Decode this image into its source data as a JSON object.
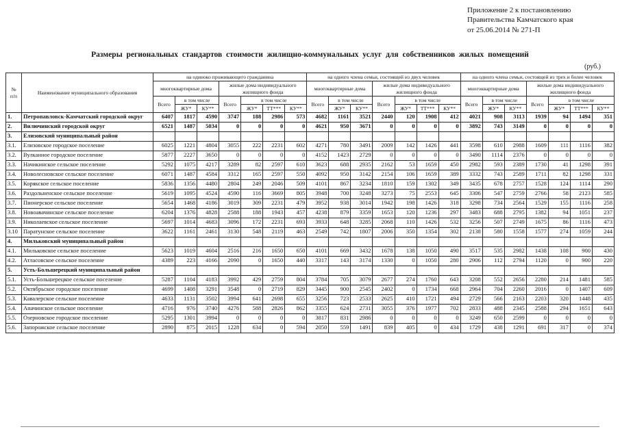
{
  "page": {
    "annotation_lines": [
      "Приложение 2 к постановлению",
      "Правительства Камчатского края",
      "от 25.06.2014   № 271-П"
    ],
    "title": "Размеры региональных стандартов стоимости жилищно-коммунальных услуг для собственников жилых помещений",
    "unit": "(руб.)"
  },
  "table": {
    "headers": {
      "num": "№\nп/п",
      "name": "Наименование муниципального образования",
      "group1": "на одиноко проживающего гражданина",
      "group2": "на одного члена семьи, состоящей из двух человек",
      "group3": "на одного члена семьи, состоящей из трех и более человек",
      "mkd": "многоквартирные дома",
      "ind": "жилые дома индивидуального жилищного фонда",
      "total": "Всего",
      "including": "в том числе",
      "zhu": "ЖУ*",
      "ku": "КУ**",
      "tt": "ТТ***"
    },
    "rows": [
      {
        "num": "1.",
        "name": "Петропавловск-Камчатский городской округ",
        "bold": true,
        "values": [
          6407,
          1817,
          4590,
          3747,
          188,
          2986,
          573,
          4682,
          1161,
          3521,
          2440,
          120,
          1908,
          412,
          4021,
          908,
          3113,
          1939,
          94,
          1494,
          351
        ]
      },
      {
        "num": "2.",
        "name": "Вилючинский городской округ",
        "bold": true,
        "values": [
          6521,
          1487,
          5034,
          0,
          0,
          0,
          0,
          4621,
          950,
          3671,
          0,
          0,
          0,
          0,
          3892,
          743,
          3149,
          0,
          0,
          0,
          0
        ]
      },
      {
        "num": "3.",
        "name": "Елизовский муниципальный район",
        "bold": true,
        "values": []
      },
      {
        "num": "3.1.",
        "name": "Елизовское городское поселение",
        "bold": false,
        "values": [
          6025,
          1221,
          4804,
          3055,
          222,
          2231,
          602,
          4271,
          780,
          3491,
          2009,
          142,
          1426,
          441,
          3598,
          610,
          2988,
          1609,
          111,
          1116,
          382
        ]
      },
      {
        "num": "3.2.",
        "name": "Вулканное городское поселение",
        "bold": false,
        "values": [
          5877,
          2227,
          3650,
          0,
          0,
          0,
          0,
          4152,
          1423,
          2729,
          0,
          0,
          0,
          0,
          3490,
          1114,
          2376,
          0,
          0,
          0,
          0
        ]
      },
      {
        "num": "3.3.",
        "name": "Начикинское сельское поселение",
        "bold": false,
        "values": [
          5292,
          1075,
          4217,
          3289,
          82,
          2597,
          610,
          3623,
          688,
          2935,
          2162,
          53,
          1659,
          450,
          2982,
          593,
          2389,
          1730,
          41,
          1298,
          391
        ]
      },
      {
        "num": "3.4.",
        "name": "Новолесновское сельское поселение",
        "bold": false,
        "values": [
          6071,
          1487,
          4584,
          3312,
          165,
          2597,
          550,
          4092,
          950,
          3142,
          2154,
          106,
          1659,
          389,
          3332,
          743,
          2589,
          1711,
          82,
          1298,
          331
        ]
      },
      {
        "num": "3.5.",
        "name": "Корякское сельское поселение",
        "bold": false,
        "values": [
          5836,
          1356,
          4480,
          2804,
          249,
          2046,
          509,
          4101,
          867,
          3234,
          1810,
          159,
          1302,
          349,
          3435,
          678,
          2757,
          1528,
          124,
          1114,
          290
        ]
      },
      {
        "num": "3.6.",
        "name": "Раздольненское сельское поселение",
        "bold": false,
        "values": [
          5619,
          1095,
          4524,
          4590,
          116,
          3669,
          805,
          3948,
          700,
          3248,
          3273,
          75,
          2553,
          645,
          3306,
          547,
          2759,
          2766,
          58,
          2123,
          585
        ]
      },
      {
        "num": "3.7.",
        "name": "Пионерское сельское поселение",
        "bold": false,
        "values": [
          5654,
          1468,
          4186,
          3019,
          309,
          2231,
          479,
          3952,
          938,
          3014,
          1942,
          198,
          1426,
          318,
          3298,
          734,
          2564,
          1529,
          155,
          1116,
          258
        ]
      },
      {
        "num": "3.8.",
        "name": "Новоавачинское сельское поселение",
        "bold": false,
        "values": [
          6204,
          1376,
          4828,
          2588,
          188,
          1943,
          457,
          4238,
          879,
          3359,
          1653,
          120,
          1236,
          297,
          3483,
          688,
          2795,
          1382,
          94,
          1051,
          237
        ]
      },
      {
        "num": "3.9.",
        "name": "Николаевское сельское поселение",
        "bold": false,
        "values": [
          5697,
          1014,
          4683,
          3096,
          172,
          2231,
          693,
          3933,
          648,
          3285,
          2068,
          110,
          1426,
          532,
          3256,
          507,
          2749,
          1675,
          86,
          1116,
          473
        ]
      },
      {
        "num": "3.10",
        "name": "Паратунское сельское поселение",
        "bold": false,
        "values": [
          3622,
          1161,
          2461,
          3130,
          548,
          2119,
          463,
          2549,
          742,
          1807,
          2006,
          350,
          1354,
          302,
          2138,
          580,
          1558,
          1577,
          274,
          1059,
          244
        ]
      },
      {
        "num": "4.",
        "name": "Мильковский муниципальный район",
        "bold": true,
        "values": []
      },
      {
        "num": "4.1.",
        "name": "Мильковское сельское поселение",
        "bold": false,
        "values": [
          5623,
          1019,
          4604,
          2516,
          216,
          1650,
          650,
          4101,
          669,
          3432,
          1678,
          138,
          1050,
          490,
          3517,
          535,
          2982,
          1438,
          108,
          900,
          430
        ]
      },
      {
        "num": "4.2.",
        "name": "Атласовское сельское поселение",
        "bold": false,
        "values": [
          4389,
          223,
          4166,
          2090,
          0,
          1650,
          440,
          3317,
          143,
          3174,
          1330,
          0,
          1050,
          280,
          2906,
          112,
          2794,
          1120,
          0,
          900,
          220
        ]
      },
      {
        "num": "5.",
        "name": "Усть-Большерецкий муниципальный район",
        "bold": true,
        "values": []
      },
      {
        "num": "5.1.",
        "name": "Усть-Большерецкое сельское поселение",
        "bold": false,
        "values": [
          5287,
          1104,
          4183,
          3992,
          429,
          2759,
          804,
          3784,
          705,
          3079,
          2677,
          274,
          1760,
          643,
          3208,
          552,
          2656,
          2280,
          214,
          1481,
          585
        ]
      },
      {
        "num": "5.2.",
        "name": "Октябрьское городское поселение",
        "bold": false,
        "values": [
          4699,
          1408,
          3291,
          3548,
          0,
          2719,
          829,
          3445,
          900,
          2545,
          2402,
          0,
          1734,
          668,
          2964,
          704,
          2260,
          2016,
          0,
          1407,
          609
        ]
      },
      {
        "num": "5.3.",
        "name": "Кавалерское сельское поселение",
        "bold": false,
        "values": [
          4633,
          1131,
          3502,
          3994,
          641,
          2698,
          655,
          3256,
          723,
          2533,
          2625,
          410,
          1721,
          494,
          2729,
          566,
          2163,
          2203,
          320,
          1448,
          435
        ]
      },
      {
        "num": "5.4.",
        "name": "Апачинское сельское поселение",
        "bold": false,
        "values": [
          4716,
          976,
          3740,
          4276,
          588,
          2826,
          862,
          3355,
          624,
          2731,
          3055,
          376,
          1977,
          702,
          2833,
          488,
          2345,
          2588,
          294,
          1651,
          643
        ]
      },
      {
        "num": "5.5.",
        "name": "Озерновское городское поселение",
        "bold": false,
        "values": [
          5295,
          1301,
          3994,
          0,
          0,
          0,
          0,
          3817,
          831,
          2986,
          0,
          0,
          0,
          0,
          3249,
          650,
          2599,
          0,
          0,
          0,
          0
        ]
      },
      {
        "num": "5.6.",
        "name": "Запорожское сельское поселение",
        "bold": false,
        "values": [
          2890,
          875,
          2015,
          1228,
          634,
          0,
          594,
          2050,
          559,
          1491,
          839,
          405,
          0,
          434,
          1729,
          438,
          1291,
          691,
          317,
          0,
          374
        ]
      }
    ]
  }
}
